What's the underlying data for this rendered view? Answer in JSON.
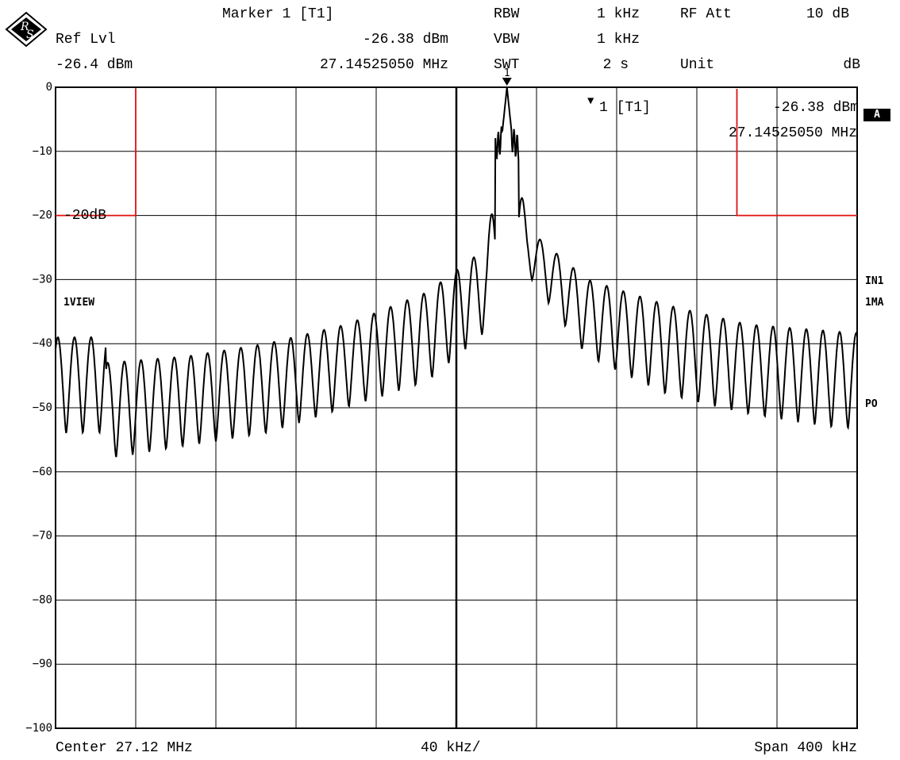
{
  "header": {
    "marker_title": "Marker 1 [T1]",
    "ref_lvl_label": "Ref Lvl",
    "ref_lvl_value": "-26.4 dBm",
    "marker_level": "-26.38 dBm",
    "marker_freq": "27.14525050 MHz",
    "rbw_label": "RBW",
    "rbw_value": "1 kHz",
    "vbw_label": "VBW",
    "vbw_value": "1 kHz",
    "swt_label": "SWT",
    "swt_value": "2 s",
    "rf_att_label": "RF Att",
    "rf_att_value": "10 dB",
    "unit_label": "Unit",
    "unit_value": "dB"
  },
  "marker_box": {
    "label": "1 [T1]",
    "level": "-26.38 dBm",
    "freq": "27.14525050 MHz",
    "peak_tag": "1"
  },
  "side_labels": {
    "trace_a": "A",
    "view": "1VIEW",
    "in1": "IN1",
    "ma1": "1MA",
    "po": "PO"
  },
  "limit_label": "-20dB",
  "footer": {
    "center": "Center 27.12 MHz",
    "div": "40 kHz/",
    "span": "Span 400 kHz"
  },
  "colors": {
    "trace": "#000000",
    "limit_line": "#e01010",
    "grid": "#000000"
  },
  "chart_data": {
    "type": "line",
    "xlabel": "",
    "ylabel": "",
    "x_unit": "kHz offset from center",
    "xlim": [
      -200,
      200
    ],
    "ylim": [
      -100,
      0
    ],
    "yticks": [
      0,
      -10,
      -20,
      -30,
      -40,
      -50,
      -60,
      -70,
      -80,
      -90,
      -100
    ],
    "grid": true,
    "peak": {
      "x": 25.25,
      "y": 0
    },
    "envelope_peaks": {
      "x": [
        -200,
        -160,
        -120,
        -80,
        -40,
        -10,
        0,
        10,
        40,
        80,
        120,
        160,
        200
      ],
      "y": [
        -43,
        -42,
        -40,
        -37,
        -32,
        -25,
        0,
        -22,
        -30,
        -34,
        -37,
        -38,
        -39
      ]
    },
    "envelope_troughs": {
      "x": [
        -200,
        -160,
        -120,
        -80,
        -40,
        -10,
        0,
        10,
        40,
        80,
        120,
        160,
        200
      ],
      "y": [
        -58,
        -56,
        -54,
        -50,
        -46,
        -38,
        -28,
        -29,
        -42,
        -48,
        -51,
        -53,
        -54
      ]
    },
    "limit_lines": [
      {
        "x": [
          -200,
          -160
        ],
        "y": -20
      },
      {
        "x": [
          140,
          200
        ],
        "y": -20
      }
    ]
  }
}
